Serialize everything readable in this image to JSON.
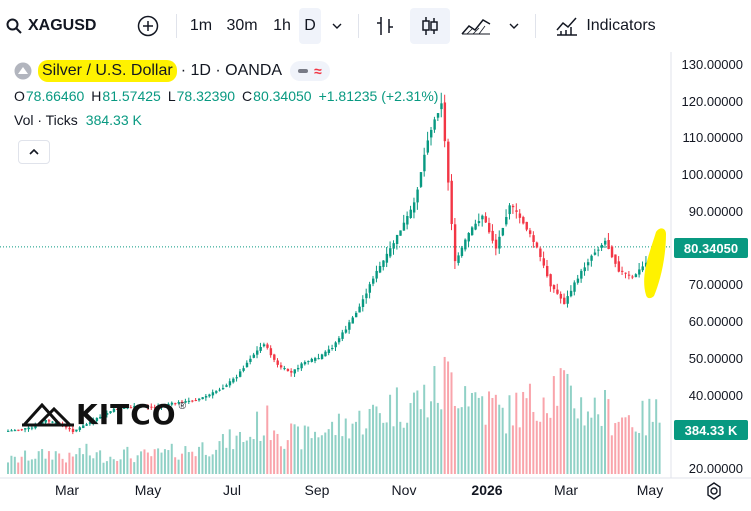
{
  "toolbar": {
    "symbol": "XAGUSD",
    "timeframes": [
      "1m",
      "30m",
      "1h",
      "D"
    ],
    "active_timeframe": "D",
    "indicators_label": "Indicators"
  },
  "legend": {
    "title": "Silver / U.S. Dollar",
    "interval_source": "· 1D · OANDA",
    "open_label": "O",
    "open": "78.66460",
    "high_label": "H",
    "high": "81.57425",
    "low_label": "L",
    "low": "78.32390",
    "close_label": "C",
    "close": "80.34050",
    "change": "+1.81235 (+2.31%)",
    "volume_label": "Vol · Ticks",
    "volume_value": "384.33 K"
  },
  "price_axis": {
    "ticks": [
      "130.00000",
      "120.00000",
      "110.00000",
      "100.00000",
      "90.00000",
      "80.34050",
      "70.00000",
      "60.00000",
      "50.00000",
      "40.00000",
      "384.33 K",
      "20.00000"
    ],
    "current_price": "80.34050",
    "current_volume": "384.33 K"
  },
  "time_axis": {
    "labels": [
      "Mar",
      "May",
      "Jul",
      "Sep",
      "Nov",
      "2026",
      "Mar",
      "May"
    ]
  },
  "logo": {
    "text": "KITCO"
  },
  "colors": {
    "up": "#089981",
    "down": "#f23645",
    "highlight": "#fff200",
    "price_tag": "#089981"
  },
  "chart_data": {
    "type": "line",
    "series": [
      {
        "values": [
          [
            0,
            30.0
          ],
          [
            1,
            30.5
          ],
          [
            2,
            31.0
          ],
          [
            3,
            33.0
          ],
          [
            4,
            32.0
          ],
          [
            5,
            30.0
          ],
          [
            6,
            32.0
          ],
          [
            7,
            34.0
          ],
          [
            8,
            36.0
          ],
          [
            9,
            36.5
          ],
          [
            10,
            37.0
          ],
          [
            11,
            36.5
          ],
          [
            12,
            37.5
          ],
          [
            13,
            38.0
          ],
          [
            14,
            38.5
          ],
          [
            15,
            40.0
          ],
          [
            16,
            42.0
          ],
          [
            17,
            45.0
          ],
          [
            18,
            50.0
          ],
          [
            19,
            54.0
          ],
          [
            20,
            48.0
          ],
          [
            21,
            46.0
          ],
          [
            22,
            49.0
          ],
          [
            23,
            50.0
          ],
          [
            24,
            53.0
          ],
          [
            25,
            58.0
          ],
          [
            26,
            64.0
          ],
          [
            27,
            72.0
          ],
          [
            28,
            78.0
          ],
          [
            29,
            85.0
          ],
          [
            30,
            92.0
          ],
          [
            31,
            110.0
          ],
          [
            32,
            120.0
          ],
          [
            33,
            76.0
          ],
          [
            34,
            84.0
          ],
          [
            35,
            89.0
          ],
          [
            36,
            80.0
          ],
          [
            37,
            92.0
          ],
          [
            38,
            87.0
          ],
          [
            39,
            80.0
          ],
          [
            40,
            70.0
          ],
          [
            41,
            65.0
          ],
          [
            42,
            72.0
          ],
          [
            43,
            78.0
          ],
          [
            44,
            82.0
          ],
          [
            45,
            74.0
          ],
          [
            46,
            72.0
          ],
          [
            47,
            76.0
          ],
          [
            48,
            80.34
          ]
        ]
      }
    ],
    "ylim": [
      15,
      135
    ],
    "volume_values": [
      90,
      110,
      120,
      130,
      100,
      140,
      120,
      110,
      130,
      110,
      120,
      130,
      140,
      150,
      170,
      190,
      210,
      230,
      300,
      320,
      250,
      230,
      260,
      280,
      300,
      330,
      360,
      400,
      430,
      450,
      470,
      520,
      600,
      560,
      480,
      430,
      380,
      420,
      440,
      520,
      560,
      470,
      420,
      400,
      380,
      360,
      340,
      370,
      384
    ]
  }
}
